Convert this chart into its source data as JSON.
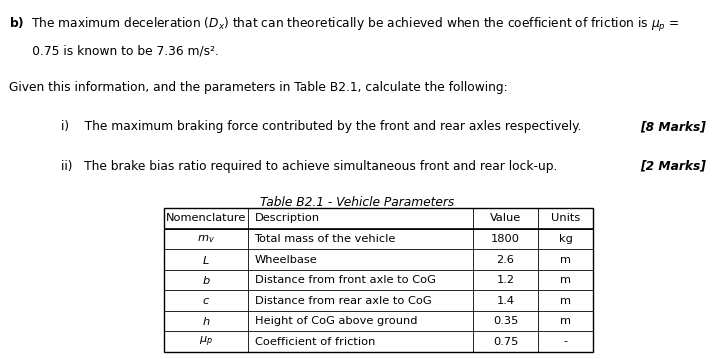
{
  "background_color": "#ffffff",
  "text_color": "#000000",
  "font_size_body": 8.8,
  "font_size_table": 8.2,
  "font_size_marks": 8.8,
  "table_title": "Table B2.1 - Vehicle Parameters",
  "table_headers": [
    "Nomenclature",
    "Description",
    "Value",
    "Units"
  ],
  "table_rows": [
    [
      "$m_v$",
      "Total mass of the vehicle",
      "1800",
      "kg"
    ],
    [
      "$L$",
      "Wheelbase",
      "2.6",
      "m"
    ],
    [
      "$b$",
      "Distance from front axle to CoG",
      "1.2",
      "m"
    ],
    [
      "$c$",
      "Distance from rear axle to CoG",
      "1.4",
      "m"
    ],
    [
      "$h$",
      "Height of CoG above ground",
      "0.35",
      "m"
    ],
    [
      "$\\mu_p$",
      "Coefficient of friction",
      "0.75",
      "-"
    ]
  ]
}
